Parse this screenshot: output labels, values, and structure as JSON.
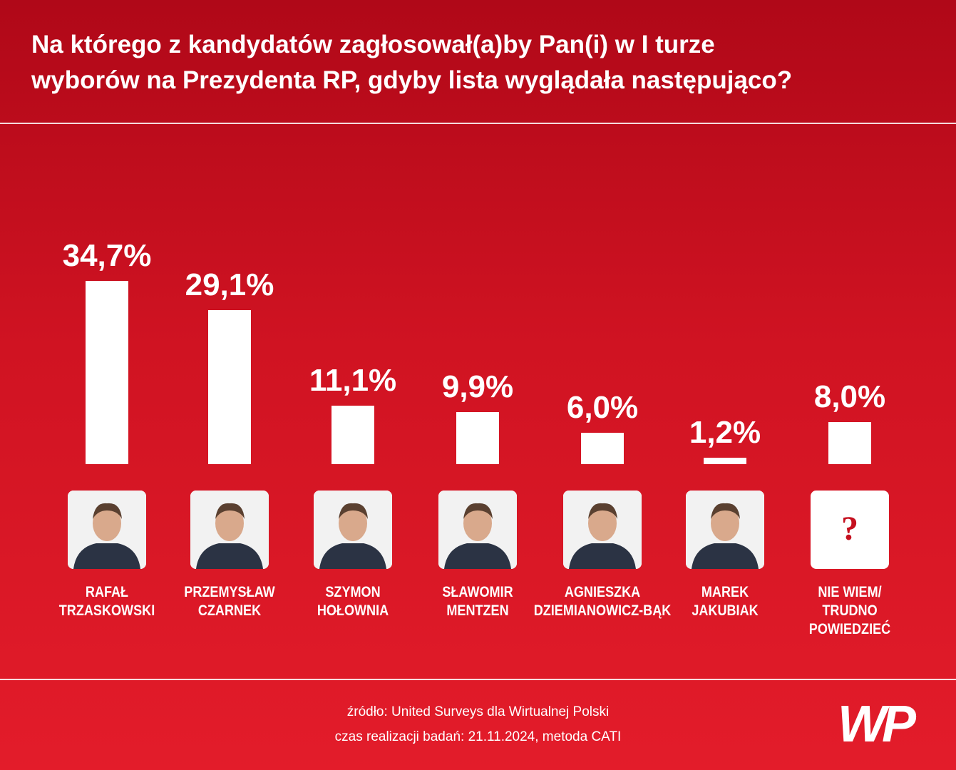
{
  "header": {
    "title_lines": [
      "Na którego z kandydatów zagłosował(a)by Pan(i) w I turze",
      "wyborów na Prezydenta RP, gdyby lista wyglądała następująco?"
    ]
  },
  "chart_data": {
    "type": "bar",
    "categories": [
      "RAFAŁ\nTRZASKOWSKI",
      "PRZEMYSŁAW\nCZARNEK",
      "SZYMON\nHOŁOWNIA",
      "SŁAWOMIR\nMENTZEN",
      "AGNIESZKA\nDZIEMIANOWICZ-BĄK",
      "MAREK\nJAKUBIAK",
      "NIE WIEM/\nTRUDNO\nPOWIEDZIEĆ"
    ],
    "values": [
      34.7,
      29.1,
      11.1,
      9.9,
      6.0,
      1.2,
      8.0
    ],
    "value_labels": [
      "34,7%",
      "29,1%",
      "11,1%",
      "9,9%",
      "6,0%",
      "1,2%",
      "8,0%"
    ],
    "color": "#ffffff",
    "unknown_photo_mark": "?"
  },
  "footer": {
    "source": "źródło: United Surveys dla Wirtualnej Polski",
    "details": "czas realizacji badań: 21.11.2024, metoda CATI",
    "logo": "WP"
  }
}
